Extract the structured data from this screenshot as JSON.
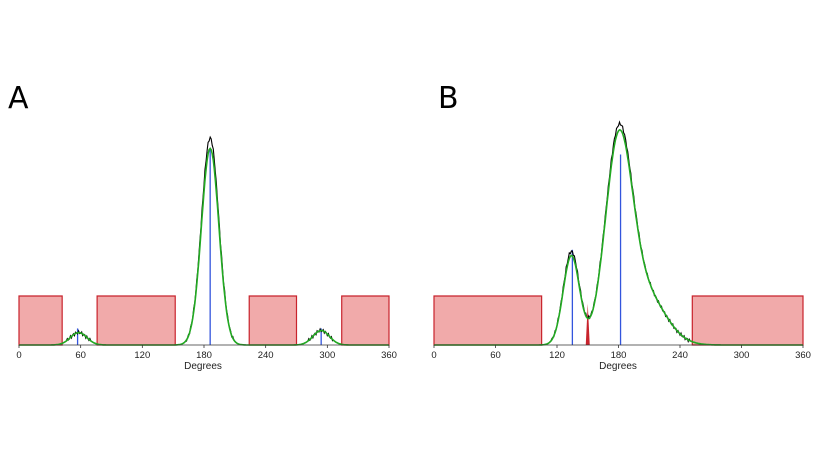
{
  "chart_data": [
    {
      "panel": "A",
      "type": "line",
      "xlabel": "Degrees",
      "ylabel": "",
      "xlim": [
        0,
        360
      ],
      "xticks": [
        0,
        60,
        120,
        180,
        240,
        300,
        360
      ],
      "grid": false,
      "colors": {
        "masked": "#f1aaaa",
        "mask_edge": "#c8232c",
        "black": "#000000",
        "green": "#22aa22",
        "blue": "#3355dd"
      },
      "masked_regions": [
        [
          0,
          42
        ],
        [
          76,
          152
        ],
        [
          224,
          270
        ],
        [
          314,
          360
        ]
      ],
      "series": [
        {
          "color": "black",
          "peaks": [
            [
              186,
              1.0,
              8.5
            ],
            [
              58,
              0.06,
              8
            ],
            [
              294,
              0.07,
              8
            ]
          ]
        },
        {
          "color": "green",
          "peaks": [
            [
              186,
              0.95,
              8.5
            ],
            [
              58,
              0.06,
              8
            ],
            [
              294,
              0.07,
              8
            ]
          ]
        }
      ],
      "sticks": {
        "blue": [
          [
            57,
            0.08
          ],
          [
            186,
            0.95
          ],
          [
            294,
            0.08
          ]
        ],
        "red": []
      }
    },
    {
      "panel": "B",
      "type": "line",
      "xlabel": "Degrees",
      "ylabel": "",
      "xlim": [
        0,
        360
      ],
      "xticks": [
        0,
        60,
        120,
        180,
        240,
        300,
        360
      ],
      "grid": false,
      "colors": {
        "masked": "#f1aaaa",
        "mask_edge": "#c8232c",
        "black": "#000000",
        "green": "#22aa22",
        "blue": "#3355dd"
      },
      "masked_regions": [
        [
          0,
          105
        ],
        [
          252,
          360
        ]
      ],
      "series": [
        {
          "color": "black",
          "peaks": [
            [
              134,
              0.45,
              8
            ],
            [
              180,
              0.95,
              13
            ],
            [
              205,
              0.25,
              20
            ]
          ]
        },
        {
          "color": "green",
          "peaks": [
            [
              134,
              0.43,
              8
            ],
            [
              180,
              0.92,
              13
            ],
            [
              205,
              0.25,
              20
            ]
          ]
        }
      ],
      "sticks": {
        "blue": [
          [
            135,
            0.46
          ],
          [
            182,
            0.92
          ]
        ],
        "red": [
          [
            150,
            0.2
          ]
        ]
      }
    }
  ]
}
